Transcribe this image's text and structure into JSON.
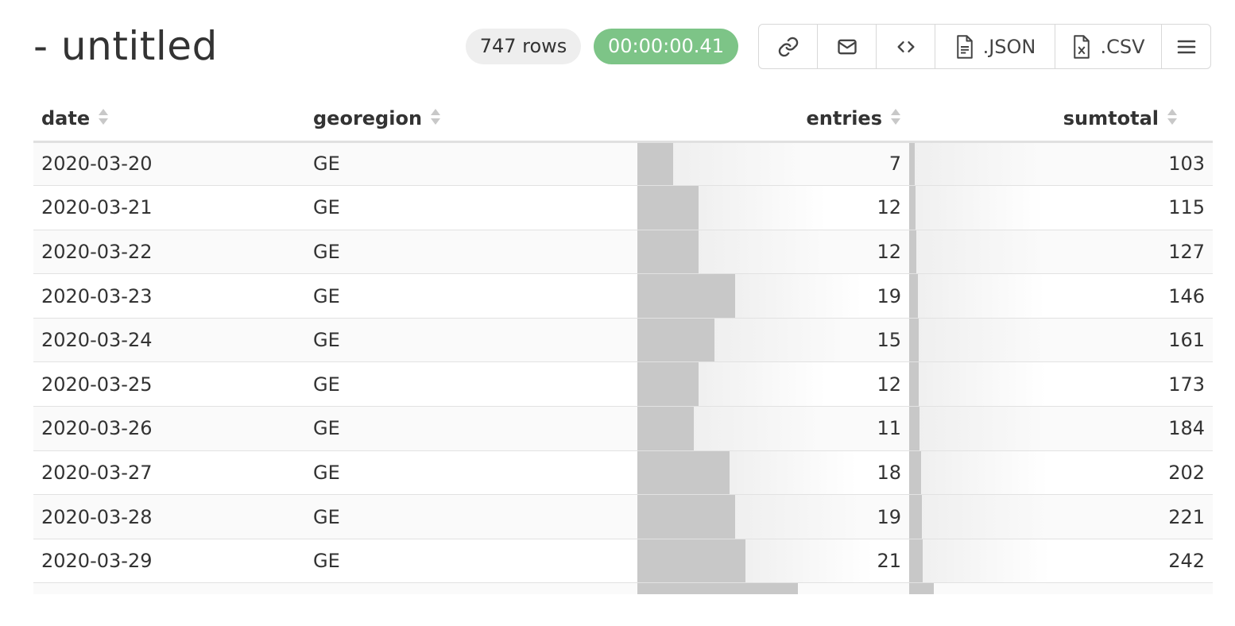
{
  "header": {
    "title": "- untitled",
    "rows_badge": "747 rows",
    "timer_badge": "00:00:00.41"
  },
  "toolbar": {
    "buttons": [
      {
        "name": "link",
        "icon": "link-icon",
        "label": ""
      },
      {
        "name": "email",
        "icon": "mail-icon",
        "label": ""
      },
      {
        "name": "embed",
        "icon": "code-icon",
        "label": ""
      },
      {
        "name": "json",
        "icon": "file-icon",
        "label": ".JSON"
      },
      {
        "name": "csv",
        "icon": "excel-file-icon",
        "label": ".CSV"
      },
      {
        "name": "menu",
        "icon": "menu-icon",
        "label": ""
      }
    ]
  },
  "table": {
    "columns": [
      "date",
      "georegion",
      "entries",
      "sumtotal"
    ],
    "rows": [
      {
        "date": "2020-03-20",
        "georegion": "GE",
        "entries": "7",
        "sumtotal": "103"
      },
      {
        "date": "2020-03-21",
        "georegion": "GE",
        "entries": "12",
        "sumtotal": "115"
      },
      {
        "date": "2020-03-22",
        "georegion": "GE",
        "entries": "12",
        "sumtotal": "127"
      },
      {
        "date": "2020-03-23",
        "georegion": "GE",
        "entries": "19",
        "sumtotal": "146"
      },
      {
        "date": "2020-03-24",
        "georegion": "GE",
        "entries": "15",
        "sumtotal": "161"
      },
      {
        "date": "2020-03-25",
        "georegion": "GE",
        "entries": "12",
        "sumtotal": "173"
      },
      {
        "date": "2020-03-26",
        "georegion": "GE",
        "entries": "11",
        "sumtotal": "184"
      },
      {
        "date": "2020-03-27",
        "georegion": "GE",
        "entries": "18",
        "sumtotal": "202"
      },
      {
        "date": "2020-03-28",
        "georegion": "GE",
        "entries": "19",
        "sumtotal": "221"
      },
      {
        "date": "2020-03-29",
        "georegion": "GE",
        "entries": "21",
        "sumtotal": "242"
      }
    ],
    "entries_bar_max": 53,
    "sumtotal_bar_max": 5300
  },
  "colors": {
    "timer_badge": "#7dc487",
    "rows_badge": "#eeeeee",
    "bar": "#c8c8c8"
  }
}
